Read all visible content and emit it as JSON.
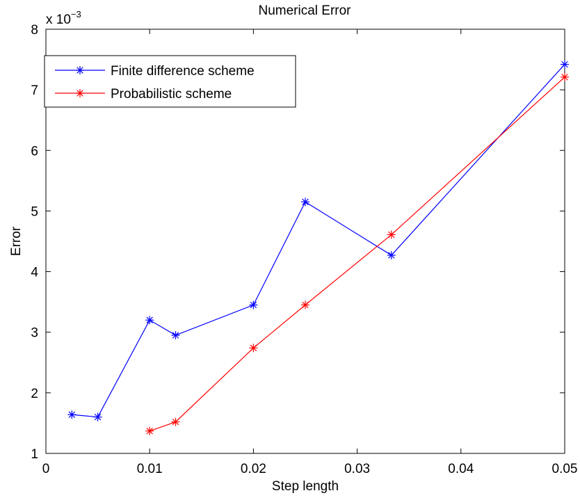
{
  "chart_data": {
    "type": "line",
    "title": "Numerical Error",
    "xlabel": "Step length",
    "ylabel": "Error",
    "y_exponent_label": "x 10",
    "y_exponent_power": "−3",
    "xlim": [
      0,
      0.05
    ],
    "ylim": [
      1,
      8
    ],
    "x_ticks": [
      0,
      0.01,
      0.02,
      0.03,
      0.04,
      0.05
    ],
    "x_tick_labels": [
      "0",
      "0.01",
      "0.02",
      "0.03",
      "0.04",
      "0.05"
    ],
    "y_ticks": [
      1,
      2,
      3,
      4,
      5,
      6,
      7,
      8
    ],
    "y_tick_labels": [
      "1",
      "2",
      "3",
      "4",
      "5",
      "6",
      "7",
      "8"
    ],
    "grid": false,
    "legend_position": "top-left",
    "marker": "asterisk",
    "series": [
      {
        "name": "Finite difference scheme",
        "color": "#0000ff",
        "x": [
          0.0025,
          0.005,
          0.01,
          0.0125,
          0.02,
          0.025,
          0.0333,
          0.05
        ],
        "y": [
          1.64,
          1.6,
          3.2,
          2.95,
          3.45,
          5.15,
          4.27,
          7.42
        ]
      },
      {
        "name": "Probabilistic scheme",
        "color": "#ff0000",
        "x": [
          0.01,
          0.0125,
          0.02,
          0.025,
          0.0333,
          0.05
        ],
        "y": [
          1.37,
          1.52,
          2.74,
          3.45,
          4.61,
          7.21
        ]
      }
    ]
  }
}
